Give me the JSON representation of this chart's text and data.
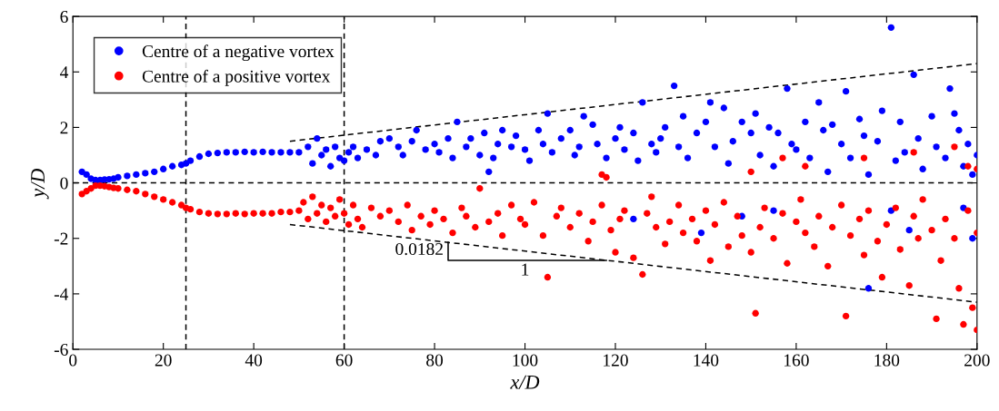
{
  "chart_data": {
    "type": "scatter",
    "xlabel": "x/D",
    "ylabel": "y/D",
    "xlim": [
      0,
      200
    ],
    "ylim": [
      -6,
      6
    ],
    "xticks": [
      0,
      20,
      40,
      60,
      80,
      100,
      120,
      140,
      160,
      180,
      200
    ],
    "yticks": [
      -6,
      -4,
      -2,
      0,
      2,
      4,
      6
    ],
    "grid": false,
    "legend": "top left",
    "series": [
      {
        "name": "Centre of a negative vortex",
        "color": "#0000ff",
        "marker": "circle",
        "x": [
          2,
          3,
          4,
          5,
          6,
          7,
          8,
          9,
          10,
          12,
          14,
          16,
          18,
          20,
          22,
          24,
          25,
          26,
          28,
          30,
          32,
          34,
          36,
          38,
          40,
          42,
          44,
          46,
          48,
          50,
          52,
          53,
          54,
          55,
          56,
          57,
          58,
          59,
          60,
          61,
          62,
          63,
          65,
          67,
          68,
          70,
          72,
          73,
          75,
          76,
          78,
          80,
          81,
          83,
          84,
          85,
          87,
          88,
          90,
          91,
          92,
          93,
          94,
          95,
          97,
          98,
          100,
          101,
          103,
          104,
          105,
          106,
          108,
          110,
          111,
          112,
          113,
          115,
          116,
          118,
          120,
          121,
          122,
          124,
          125,
          126,
          128,
          129,
          130,
          131,
          133,
          134,
          135,
          136,
          138,
          140,
          141,
          142,
          144,
          145,
          146,
          148,
          150,
          151,
          152,
          154,
          155,
          156,
          158,
          159,
          160,
          162,
          163,
          165,
          166,
          167,
          168,
          170,
          171,
          172,
          174,
          175,
          176,
          178,
          179,
          181,
          182,
          183,
          184,
          186,
          187,
          188,
          190,
          191,
          193,
          194,
          195,
          196,
          197,
          198,
          199,
          200,
          124,
          139,
          148,
          155,
          176,
          181,
          185,
          197,
          199
        ],
        "values": [
          0.4,
          0.3,
          0.15,
          0.1,
          0.1,
          0.12,
          0.13,
          0.15,
          0.2,
          0.25,
          0.3,
          0.35,
          0.4,
          0.5,
          0.6,
          0.65,
          0.7,
          0.8,
          0.95,
          1.05,
          1.08,
          1.1,
          1.1,
          1.12,
          1.1,
          1.12,
          1.1,
          1.1,
          1.1,
          1.1,
          1.3,
          0.7,
          1.6,
          1.0,
          1.2,
          0.6,
          1.3,
          0.9,
          0.8,
          1.1,
          1.3,
          0.9,
          1.2,
          1.0,
          1.5,
          1.6,
          1.3,
          1.0,
          1.5,
          1.9,
          1.2,
          1.4,
          1.1,
          1.6,
          0.9,
          2.2,
          1.3,
          1.6,
          1.0,
          1.8,
          0.4,
          0.9,
          1.4,
          1.9,
          1.3,
          1.7,
          1.2,
          0.8,
          1.9,
          1.4,
          2.5,
          1.1,
          1.6,
          1.9,
          1.0,
          1.3,
          2.4,
          2.1,
          1.4,
          0.9,
          1.6,
          2.0,
          1.2,
          1.8,
          0.8,
          2.9,
          1.4,
          1.1,
          1.6,
          2.0,
          3.5,
          1.3,
          2.4,
          0.9,
          1.8,
          2.2,
          2.9,
          1.3,
          2.7,
          0.7,
          1.5,
          2.2,
          1.8,
          2.5,
          1.0,
          2.0,
          0.6,
          1.8,
          3.4,
          1.4,
          1.2,
          2.2,
          0.9,
          2.9,
          1.9,
          0.4,
          2.1,
          1.4,
          3.3,
          0.9,
          2.3,
          1.7,
          0.3,
          1.5,
          2.6,
          5.6,
          0.8,
          2.2,
          1.1,
          3.9,
          1.6,
          0.5,
          2.4,
          1.3,
          0.9,
          3.4,
          2.5,
          1.9,
          0.6,
          1.4,
          0.3,
          1.0,
          -1.3,
          -1.8,
          -1.2,
          -1.0,
          -3.8,
          -1.0,
          -1.7,
          -0.9,
          -2.0
        ]
      },
      {
        "name": "Centre of a positive vortex",
        "color": "#ff0000",
        "marker": "circle",
        "x": [
          2,
          3,
          4,
          5,
          6,
          7,
          8,
          9,
          10,
          12,
          14,
          16,
          18,
          20,
          22,
          24,
          25,
          26,
          28,
          30,
          32,
          34,
          36,
          38,
          40,
          42,
          44,
          46,
          48,
          50,
          51,
          52,
          53,
          54,
          55,
          56,
          57,
          58,
          59,
          60,
          61,
          62,
          63,
          64,
          66,
          68,
          70,
          72,
          74,
          75,
          77,
          79,
          80,
          82,
          84,
          86,
          87,
          89,
          90,
          92,
          94,
          95,
          97,
          99,
          100,
          102,
          104,
          105,
          107,
          108,
          110,
          112,
          114,
          115,
          117,
          119,
          120,
          121,
          122,
          124,
          126,
          127,
          128,
          129,
          131,
          132,
          134,
          135,
          137,
          138,
          140,
          141,
          142,
          144,
          145,
          147,
          148,
          150,
          151,
          152,
          153,
          155,
          157,
          158,
          160,
          161,
          162,
          164,
          165,
          167,
          168,
          170,
          171,
          172,
          174,
          175,
          176,
          178,
          179,
          180,
          182,
          183,
          185,
          186,
          187,
          188,
          190,
          191,
          192,
          193,
          195,
          196,
          197,
          198,
          199,
          200,
          200,
          117,
          118,
          150,
          157,
          162,
          175,
          186,
          195,
          198,
          200
        ],
        "values": [
          -0.4,
          -0.3,
          -0.2,
          -0.1,
          -0.1,
          -0.12,
          -0.15,
          -0.18,
          -0.2,
          -0.25,
          -0.3,
          -0.4,
          -0.5,
          -0.6,
          -0.7,
          -0.8,
          -0.9,
          -0.95,
          -1.05,
          -1.1,
          -1.12,
          -1.12,
          -1.1,
          -1.12,
          -1.1,
          -1.1,
          -1.1,
          -1.05,
          -1.05,
          -1.0,
          -0.7,
          -1.3,
          -0.5,
          -1.1,
          -0.8,
          -1.4,
          -0.9,
          -1.2,
          -0.6,
          -1.1,
          -1.5,
          -0.8,
          -1.3,
          -1.6,
          -0.9,
          -1.2,
          -1.0,
          -1.4,
          -0.8,
          -1.7,
          -1.2,
          -1.5,
          -1.0,
          -1.3,
          -1.8,
          -0.9,
          -1.2,
          -1.6,
          -0.2,
          -1.4,
          -1.1,
          -1.9,
          -0.8,
          -1.3,
          -1.5,
          -0.7,
          -1.9,
          -3.4,
          -1.2,
          -0.9,
          -1.6,
          -1.1,
          -2.1,
          -1.4,
          -0.8,
          -1.7,
          -2.5,
          -1.3,
          -1.0,
          -2.7,
          -3.3,
          -1.1,
          -0.5,
          -1.6,
          -2.2,
          -1.4,
          -0.8,
          -1.8,
          -1.3,
          -2.1,
          -1.0,
          -2.8,
          -1.5,
          -0.7,
          -2.3,
          -1.2,
          -1.9,
          -2.5,
          -4.7,
          -1.6,
          -0.9,
          -2.0,
          -1.1,
          -2.9,
          -1.4,
          -0.6,
          -1.8,
          -2.3,
          -1.2,
          -3.0,
          -1.6,
          -0.8,
          -4.8,
          -1.9,
          -1.3,
          -2.6,
          -1.0,
          -2.1,
          -3.4,
          -1.5,
          -0.9,
          -2.4,
          -3.7,
          -1.2,
          -2.0,
          -0.6,
          -1.7,
          -4.9,
          -2.8,
          -1.3,
          -2.0,
          -3.8,
          -5.1,
          -1.0,
          -4.5,
          -5.3,
          -1.8,
          0.3,
          0.2,
          0.4,
          0.9,
          0.6,
          0.9,
          1.1,
          1.3,
          0.6,
          0.5
        ]
      },
      {
        "type": "line",
        "color": "#000000",
        "line_style": "dashed",
        "marker": "none",
        "x": [
          48,
          200
        ],
        "values": [
          1.5,
          4.3
        ]
      },
      {
        "type": "line",
        "color": "#000000",
        "line_style": "dashed",
        "marker": "none",
        "x": [
          48,
          200
        ],
        "values": [
          -1.5,
          -4.3
        ]
      }
    ],
    "ref_lines": [
      {
        "axis": "x",
        "value": 25,
        "line_style": "dashed",
        "color": "#000000"
      },
      {
        "axis": "x",
        "value": 60,
        "line_style": "dashed",
        "color": "#000000"
      },
      {
        "axis": "y",
        "value": 0,
        "line_style": "dashed",
        "color": "#000000"
      }
    ],
    "annotations": [
      {
        "text": "0.0182",
        "x": 118,
        "y": -2.79
      },
      "1"
    ]
  }
}
